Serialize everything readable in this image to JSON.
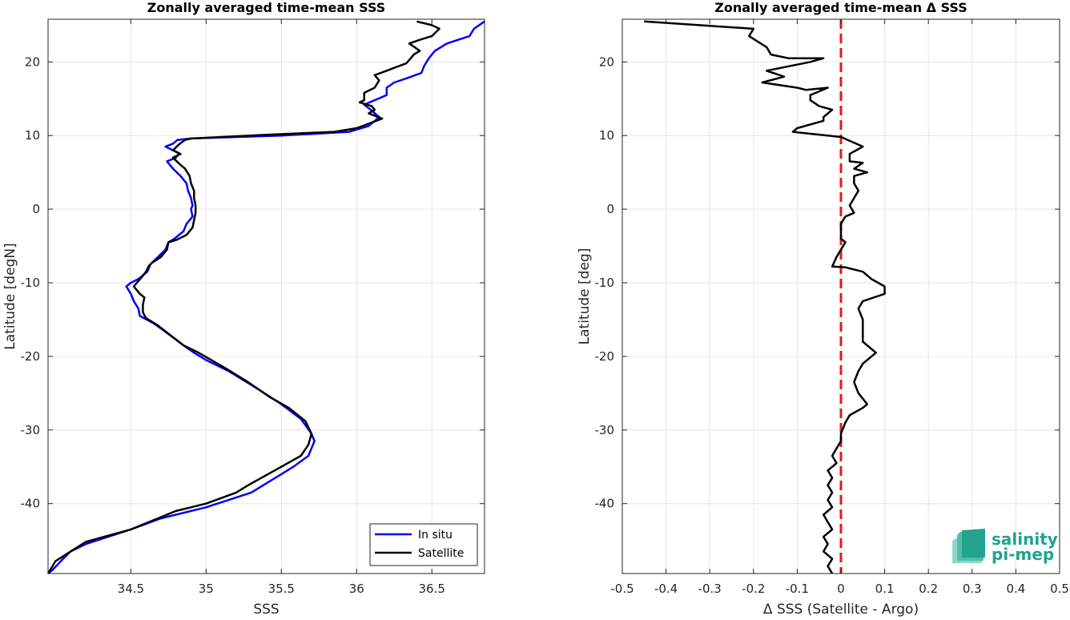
{
  "chart_data": [
    {
      "type": "line",
      "title": "Zonally averaged time-mean SSS",
      "xlabel": "SSS",
      "ylabel": "Latitude [degN]",
      "xlim": [
        33.95,
        36.85
      ],
      "ylim": [
        -49.5,
        25.8
      ],
      "xticks": [
        34.5,
        35,
        35.5,
        36,
        36.5
      ],
      "xtick_labels": [
        "34.5",
        "35",
        "35.5",
        "36",
        "36.5"
      ],
      "yticks": [
        -40,
        -30,
        -20,
        -10,
        0,
        10,
        20
      ],
      "ytick_labels": [
        "-40",
        "-30",
        "-20",
        "-10",
        "0",
        "10",
        "20"
      ],
      "grid": true,
      "legend_position": "bottom-right",
      "series": [
        {
          "name": "In situ",
          "color": "#0000ff",
          "points": [
            [
              36.85,
              25.5
            ],
            [
              36.78,
              24.5
            ],
            [
              36.75,
              23.5
            ],
            [
              36.6,
              22.5
            ],
            [
              36.52,
              21.5
            ],
            [
              36.48,
              20.5
            ],
            [
              36.45,
              19.5
            ],
            [
              36.43,
              18.5
            ],
            [
              36.35,
              17.9
            ],
            [
              36.25,
              17.2
            ],
            [
              36.2,
              16.5
            ],
            [
              36.2,
              15.5
            ],
            [
              36.12,
              14.8
            ],
            [
              36.05,
              14.2
            ],
            [
              36.1,
              13.4
            ],
            [
              36.15,
              12.5
            ],
            [
              36.08,
              11.3
            ],
            [
              35.95,
              10.5
            ],
            [
              35.5,
              10.0
            ],
            [
              34.9,
              9.6
            ],
            [
              34.81,
              9.4
            ],
            [
              34.78,
              8.9
            ],
            [
              34.73,
              8.5
            ],
            [
              34.82,
              7.6
            ],
            [
              34.8,
              7.0
            ],
            [
              34.74,
              6.5
            ],
            [
              34.78,
              5.5
            ],
            [
              34.83,
              4.5
            ],
            [
              34.87,
              3.5
            ],
            [
              34.88,
              2.5
            ],
            [
              34.9,
              1.5
            ],
            [
              34.91,
              0.5
            ],
            [
              34.9,
              0.0
            ],
            [
              34.91,
              -1.0
            ],
            [
              34.87,
              -2.0
            ],
            [
              34.85,
              -3.0
            ],
            [
              34.79,
              -4.0
            ],
            [
              34.75,
              -4.5
            ],
            [
              34.73,
              -5.5
            ],
            [
              34.68,
              -6.5
            ],
            [
              34.63,
              -7.5
            ],
            [
              34.61,
              -8.5
            ],
            [
              34.55,
              -9.5
            ],
            [
              34.5,
              -10.0
            ],
            [
              34.47,
              -10.5
            ],
            [
              34.5,
              -11.5
            ],
            [
              34.52,
              -12.5
            ],
            [
              34.55,
              -13.5
            ],
            [
              34.56,
              -14.5
            ],
            [
              34.65,
              -15.5
            ],
            [
              34.72,
              -16.5
            ],
            [
              34.85,
              -18.5
            ],
            [
              34.92,
              -19.5
            ],
            [
              35.0,
              -20.5
            ],
            [
              35.15,
              -22.0
            ],
            [
              35.35,
              -24.5
            ],
            [
              35.5,
              -26.5
            ],
            [
              35.63,
              -28.5
            ],
            [
              35.7,
              -30.5
            ],
            [
              35.72,
              -31.5
            ],
            [
              35.68,
              -33.5
            ],
            [
              35.58,
              -35.0
            ],
            [
              35.5,
              -36.0
            ],
            [
              35.3,
              -38.5
            ],
            [
              35.0,
              -40.5
            ],
            [
              34.7,
              -42.0
            ],
            [
              34.5,
              -43.5
            ],
            [
              34.2,
              -45.5
            ],
            [
              34.1,
              -46.5
            ],
            [
              34.05,
              -47.5
            ],
            [
              33.98,
              -49.0
            ],
            [
              33.95,
              -49.5
            ]
          ]
        },
        {
          "name": "Satellite",
          "color": "#000000",
          "points": [
            [
              36.4,
              25.5
            ],
            [
              36.5,
              25.0
            ],
            [
              36.55,
              24.5
            ],
            [
              36.5,
              23.5
            ],
            [
              36.42,
              23.0
            ],
            [
              36.35,
              22.5
            ],
            [
              36.42,
              21.5
            ],
            [
              36.38,
              21.0
            ],
            [
              36.36,
              20.5
            ],
            [
              36.33,
              19.8
            ],
            [
              36.25,
              19.2
            ],
            [
              36.2,
              18.8
            ],
            [
              36.12,
              18.2
            ],
            [
              36.15,
              17.5
            ],
            [
              36.12,
              16.5
            ],
            [
              36.05,
              15.8
            ],
            [
              36.05,
              14.8
            ],
            [
              36.02,
              14.5
            ],
            [
              36.1,
              14.0
            ],
            [
              36.12,
              13.5
            ],
            [
              36.08,
              13.0
            ],
            [
              36.17,
              12.3
            ],
            [
              36.0,
              11.0
            ],
            [
              35.85,
              10.5
            ],
            [
              35.4,
              10.1
            ],
            [
              34.9,
              9.6
            ],
            [
              34.86,
              9.4
            ],
            [
              34.82,
              8.8
            ],
            [
              34.78,
              8.0
            ],
            [
              34.83,
              7.5
            ],
            [
              34.78,
              7.0
            ],
            [
              34.82,
              6.2
            ],
            [
              34.86,
              5.5
            ],
            [
              34.89,
              4.5
            ],
            [
              34.9,
              3.5
            ],
            [
              34.92,
              2.5
            ],
            [
              34.92,
              1.5
            ],
            [
              34.93,
              0.5
            ],
            [
              34.93,
              -0.5
            ],
            [
              34.92,
              -1.5
            ],
            [
              34.91,
              -2.5
            ],
            [
              34.87,
              -3.5
            ],
            [
              34.8,
              -4.2
            ],
            [
              34.75,
              -4.5
            ],
            [
              34.74,
              -5.5
            ],
            [
              34.7,
              -6.5
            ],
            [
              34.64,
              -7.3
            ],
            [
              34.62,
              -7.7
            ],
            [
              34.6,
              -8.5
            ],
            [
              34.57,
              -9.3
            ],
            [
              34.54,
              -10.0
            ],
            [
              34.52,
              -10.5
            ],
            [
              34.56,
              -11.5
            ],
            [
              34.59,
              -12.0
            ],
            [
              34.58,
              -13.0
            ],
            [
              34.58,
              -14.0
            ],
            [
              34.6,
              -14.8
            ],
            [
              34.68,
              -15.8
            ],
            [
              34.85,
              -18.5
            ],
            [
              34.95,
              -19.5
            ],
            [
              35.12,
              -21.5
            ],
            [
              35.28,
              -23.5
            ],
            [
              35.42,
              -25.5
            ],
            [
              35.55,
              -27.0
            ],
            [
              35.66,
              -28.8
            ],
            [
              35.7,
              -30.5
            ],
            [
              35.68,
              -32.0
            ],
            [
              35.63,
              -33.5
            ],
            [
              35.5,
              -35.0
            ],
            [
              35.28,
              -37.5
            ],
            [
              35.2,
              -38.5
            ],
            [
              35.0,
              -40.0
            ],
            [
              34.8,
              -41.0
            ],
            [
              34.5,
              -43.5
            ],
            [
              34.2,
              -45.2
            ],
            [
              34.1,
              -46.5
            ],
            [
              34.0,
              -47.8
            ],
            [
              33.95,
              -49.5
            ]
          ]
        }
      ]
    },
    {
      "type": "line",
      "title": "Zonally averaged time-mean Δ SSS",
      "xlabel": "Δ SSS (Satellite - Argo)",
      "ylabel": "Latitude [deg]",
      "xlim": [
        -0.5,
        0.5
      ],
      "ylim": [
        -49.5,
        25.8
      ],
      "xticks": [
        -0.5,
        -0.4,
        -0.3,
        -0.2,
        -0.1,
        0,
        0.1,
        0.2,
        0.3,
        0.4,
        0.5
      ],
      "xtick_labels": [
        "-0.5",
        "-0.4",
        "-0.3",
        "-0.2",
        "-0.1",
        "0",
        "0.1",
        "0.2",
        "0.3",
        "0.4",
        "0.5"
      ],
      "yticks": [
        -40,
        -30,
        -20,
        -10,
        0,
        10,
        20
      ],
      "ytick_labels": [
        "-40",
        "-30",
        "-20",
        "-10",
        "0",
        "10",
        "20"
      ],
      "grid": true,
      "reference_line": {
        "x": 0,
        "color": "#e41a1c",
        "style": "dashed"
      },
      "series": [
        {
          "color": "#000000",
          "points": [
            [
              -0.45,
              25.5
            ],
            [
              -0.2,
              24.5
            ],
            [
              -0.21,
              23.5
            ],
            [
              -0.17,
              22.0
            ],
            [
              -0.16,
              21.0
            ],
            [
              -0.12,
              20.5
            ],
            [
              -0.04,
              20.5
            ],
            [
              -0.07,
              20.0
            ],
            [
              -0.17,
              18.8
            ],
            [
              -0.13,
              18.0
            ],
            [
              -0.18,
              17.2
            ],
            [
              -0.1,
              16.5
            ],
            [
              -0.08,
              16.2
            ],
            [
              -0.03,
              16.5
            ],
            [
              -0.07,
              15.5
            ],
            [
              -0.07,
              14.8
            ],
            [
              -0.05,
              14.0
            ],
            [
              -0.02,
              13.5
            ],
            [
              -0.04,
              12.5
            ],
            [
              -0.04,
              12.0
            ],
            [
              -0.07,
              11.5
            ],
            [
              -0.1,
              11.0
            ],
            [
              -0.11,
              10.5
            ],
            [
              0.0,
              9.8
            ],
            [
              0.05,
              8.5
            ],
            [
              0.02,
              7.5
            ],
            [
              0.02,
              6.5
            ],
            [
              0.05,
              6.3
            ],
            [
              0.03,
              5.5
            ],
            [
              0.06,
              5.0
            ],
            [
              0.03,
              4.5
            ],
            [
              0.03,
              3.5
            ],
            [
              0.04,
              2.5
            ],
            [
              0.03,
              1.5
            ],
            [
              0.02,
              0.5
            ],
            [
              0.03,
              -0.5
            ],
            [
              0.01,
              -1.0
            ],
            [
              0.0,
              -2.0
            ],
            [
              0.0,
              -3.0
            ],
            [
              0.0,
              -4.0
            ],
            [
              0.01,
              -4.5
            ],
            [
              0.0,
              -5.5
            ],
            [
              -0.01,
              -6.5
            ],
            [
              -0.02,
              -7.8
            ],
            [
              0.01,
              -7.9
            ],
            [
              0.05,
              -8.5
            ],
            [
              0.06,
              -9.0
            ],
            [
              0.07,
              -9.5
            ],
            [
              0.1,
              -10.5
            ],
            [
              0.1,
              -11.5
            ],
            [
              0.05,
              -12.5
            ],
            [
              0.04,
              -13.5
            ],
            [
              0.05,
              -15.0
            ],
            [
              0.05,
              -16.5
            ],
            [
              0.05,
              -18.0
            ],
            [
              0.08,
              -19.5
            ],
            [
              0.05,
              -21.0
            ],
            [
              0.04,
              -22.0
            ],
            [
              0.03,
              -23.5
            ],
            [
              0.04,
              -25.0
            ],
            [
              0.06,
              -26.5
            ],
            [
              0.05,
              -27.0
            ],
            [
              0.02,
              -28.0
            ],
            [
              0.01,
              -29.0
            ],
            [
              0.0,
              -30.5
            ],
            [
              0.0,
              -31.5
            ],
            [
              -0.01,
              -32.5
            ],
            [
              -0.02,
              -33.5
            ],
            [
              -0.01,
              -34.5
            ],
            [
              -0.03,
              -35.5
            ],
            [
              -0.02,
              -36.5
            ],
            [
              -0.03,
              -37.5
            ],
            [
              -0.02,
              -38.5
            ],
            [
              -0.03,
              -39.5
            ],
            [
              -0.02,
              -40.5
            ],
            [
              -0.04,
              -41.5
            ],
            [
              -0.03,
              -42.5
            ],
            [
              -0.02,
              -43.5
            ],
            [
              -0.04,
              -44.5
            ],
            [
              -0.03,
              -45.5
            ],
            [
              -0.04,
              -46.5
            ],
            [
              -0.02,
              -47.5
            ],
            [
              -0.03,
              -48.5
            ],
            [
              -0.02,
              -49.5
            ]
          ]
        }
      ]
    }
  ],
  "logo": {
    "line1": "salinity",
    "line2": "pi-mep",
    "color": "#1fa38f"
  }
}
